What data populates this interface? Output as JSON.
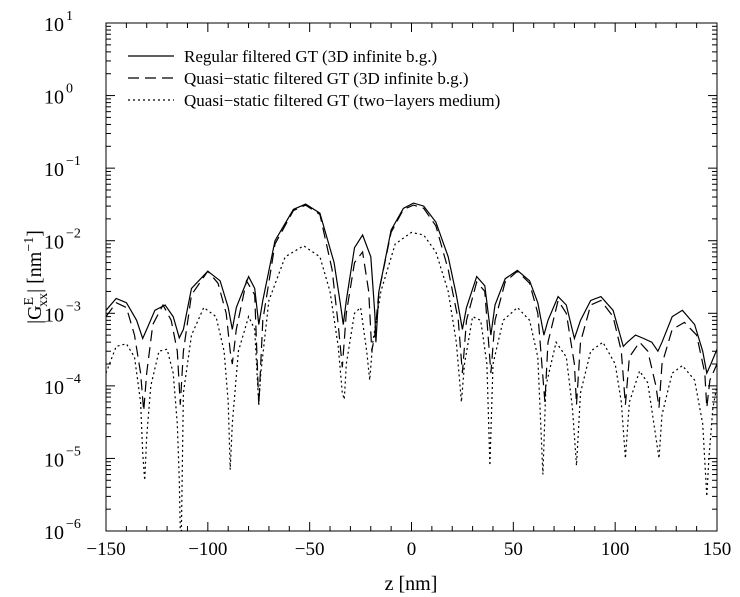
{
  "chart_data": {
    "type": "line",
    "title": "",
    "xlabel": "z [nm]",
    "ylabel": "|G",
    "ylabel_sup": "E",
    "ylabel_sub": "xx",
    "ylabel_tail": "| [nm",
    "ylabel_tail_sup": "−1",
    "ylabel_end": "]",
    "xlim": [
      -150,
      150
    ],
    "ylim": [
      1e-06,
      10
    ],
    "yscale": "log",
    "grid": false,
    "legend_position": "top-left",
    "xticks": [
      {
        "value": -150,
        "label": "−150"
      },
      {
        "value": -100,
        "label": "−100"
      },
      {
        "value": -50,
        "label": "−50"
      },
      {
        "value": 0,
        "label": "0"
      },
      {
        "value": 50,
        "label": "50"
      },
      {
        "value": 100,
        "label": "100"
      },
      {
        "value": 150,
        "label": "150"
      }
    ],
    "yticks": [
      {
        "value": 1e-06,
        "base": "10",
        "exp": "−6"
      },
      {
        "value": 1e-05,
        "base": "10",
        "exp": "−5"
      },
      {
        "value": 0.0001,
        "base": "10",
        "exp": "−4"
      },
      {
        "value": 0.001,
        "base": "10",
        "exp": "−3"
      },
      {
        "value": 0.01,
        "base": "10",
        "exp": "−2"
      },
      {
        "value": 0.1,
        "base": "10",
        "exp": "−1"
      },
      {
        "value": 1,
        "base": "10",
        "exp": "0"
      },
      {
        "value": 10,
        "base": "10",
        "exp": "1"
      }
    ],
    "series": [
      {
        "name": "Regular filtered GT (3D infinite b.g.)",
        "style": "solid",
        "points": [
          [
            -150,
            0.0011
          ],
          [
            -145,
            0.0016
          ],
          [
            -140,
            0.0014
          ],
          [
            -135,
            0.0008
          ],
          [
            -132,
            0.00045
          ],
          [
            -130,
            0.0006
          ],
          [
            -126,
            0.0011
          ],
          [
            -121,
            0.0013
          ],
          [
            -117,
            0.0009
          ],
          [
            -114,
            0.00046
          ],
          [
            -112,
            0.0006
          ],
          [
            -108,
            0.0022
          ],
          [
            -100,
            0.0038
          ],
          [
            -94,
            0.0028
          ],
          [
            -90,
            0.0012
          ],
          [
            -88,
            0.0006
          ],
          [
            -86,
            0.0012
          ],
          [
            -80,
            0.0032
          ],
          [
            -77,
            0.0022
          ],
          [
            -75,
            0.0007
          ],
          [
            -73,
            0.0015
          ],
          [
            -67,
            0.01
          ],
          [
            -58,
            0.027
          ],
          [
            -52,
            0.032
          ],
          [
            -45,
            0.024
          ],
          [
            -38,
            0.005
          ],
          [
            -35,
            0.0014
          ],
          [
            -33.5,
            0.0007
          ],
          [
            -32,
            0.0015
          ],
          [
            -28,
            0.008
          ],
          [
            -24,
            0.012
          ],
          [
            -20,
            0.006
          ],
          [
            -18,
            0.001
          ],
          [
            -17.5,
            0.0004
          ],
          [
            -16,
            0.002
          ],
          [
            -10,
            0.014
          ],
          [
            -4,
            0.028
          ],
          [
            1,
            0.033
          ],
          [
            6,
            0.03
          ],
          [
            12,
            0.018
          ],
          [
            18,
            0.006
          ],
          [
            22,
            0.0018
          ],
          [
            25,
            0.0006
          ],
          [
            27,
            0.0012
          ],
          [
            32,
            0.0032
          ],
          [
            36,
            0.0024
          ],
          [
            39,
            0.0005
          ],
          [
            41,
            0.0013
          ],
          [
            46,
            0.003
          ],
          [
            52,
            0.0039
          ],
          [
            58,
            0.0028
          ],
          [
            62,
            0.0014
          ],
          [
            65,
            0.0005
          ],
          [
            67,
            0.0008
          ],
          [
            72,
            0.0017
          ],
          [
            76,
            0.0013
          ],
          [
            80,
            0.00045
          ],
          [
            83,
            0.0008
          ],
          [
            88,
            0.0015
          ],
          [
            93,
            0.0017
          ],
          [
            99,
            0.0011
          ],
          [
            104,
            0.00035
          ],
          [
            106,
            0.0004
          ],
          [
            110,
            0.0005
          ],
          [
            114,
            0.00045
          ],
          [
            118,
            0.0004
          ],
          [
            121,
            0.0003
          ],
          [
            123,
            0.0004
          ],
          [
            128,
            0.0009
          ],
          [
            133,
            0.0011
          ],
          [
            139,
            0.0007
          ],
          [
            143,
            0.0003
          ],
          [
            145,
            0.00015
          ],
          [
            147,
            0.0002
          ],
          [
            150,
            0.00032
          ]
        ]
      },
      {
        "name": "Quasi−static filtered GT (3D infinite b.g.)",
        "style": "dashed",
        "points": [
          [
            -150,
            0.0009
          ],
          [
            -145,
            0.0014
          ],
          [
            -140,
            0.0012
          ],
          [
            -136,
            0.0005
          ],
          [
            -133,
            0.00015
          ],
          [
            -131.5,
            4.5e-05
          ],
          [
            -130,
            0.00015
          ],
          [
            -127,
            0.0007
          ],
          [
            -122,
            0.0013
          ],
          [
            -118,
            0.0008
          ],
          [
            -115,
            0.0003
          ],
          [
            -113.5,
            5.5e-05
          ],
          [
            -112,
            0.0003
          ],
          [
            -108,
            0.0018
          ],
          [
            -100,
            0.0038
          ],
          [
            -95,
            0.0026
          ],
          [
            -91,
            0.001
          ],
          [
            -89,
            0.0003
          ],
          [
            -88,
            0.0002
          ],
          [
            -86,
            0.0006
          ],
          [
            -81,
            0.0028
          ],
          [
            -77,
            0.0018
          ],
          [
            -75,
            5.5e-05
          ],
          [
            -73,
            0.0008
          ],
          [
            -67,
            0.009
          ],
          [
            -58,
            0.026
          ],
          [
            -52,
            0.031
          ],
          [
            -45,
            0.023
          ],
          [
            -39,
            0.004
          ],
          [
            -36,
            0.0007
          ],
          [
            -34,
            0.00018
          ],
          [
            -32,
            0.001
          ],
          [
            -28,
            0.005
          ],
          [
            -24,
            0.007
          ],
          [
            -21,
            0.002
          ],
          [
            -19.5,
            0.0003
          ],
          [
            -18,
            0.0005
          ],
          [
            -16,
            0.002
          ],
          [
            -10,
            0.013
          ],
          [
            -4,
            0.027
          ],
          [
            1,
            0.031
          ],
          [
            6,
            0.028
          ],
          [
            12,
            0.016
          ],
          [
            18,
            0.004
          ],
          [
            23,
            0.0008
          ],
          [
            25,
            0.00015
          ],
          [
            27,
            0.0008
          ],
          [
            32,
            0.0027
          ],
          [
            36,
            0.002
          ],
          [
            39,
            0.00015
          ],
          [
            41,
            0.0008
          ],
          [
            46,
            0.0027
          ],
          [
            52,
            0.0038
          ],
          [
            58,
            0.0026
          ],
          [
            62,
            0.001
          ],
          [
            65.5,
            6e-05
          ],
          [
            67,
            0.0004
          ],
          [
            72,
            0.0015
          ],
          [
            76,
            0.001
          ],
          [
            80,
            0.0002
          ],
          [
            81,
            5.5e-05
          ],
          [
            83,
            0.0004
          ],
          [
            88,
            0.0013
          ],
          [
            93,
            0.0015
          ],
          [
            99,
            0.0009
          ],
          [
            103,
            0.0003
          ],
          [
            105,
            5.5e-05
          ],
          [
            107,
            0.00025
          ],
          [
            112,
            0.0004
          ],
          [
            116,
            0.0003
          ],
          [
            120,
            0.0001
          ],
          [
            121.5,
            5e-05
          ],
          [
            123,
            0.0002
          ],
          [
            128,
            0.0006
          ],
          [
            134,
            0.00075
          ],
          [
            140,
            0.0005
          ],
          [
            144,
            0.00015
          ],
          [
            145,
            5e-05
          ],
          [
            146.5,
            0.00012
          ],
          [
            150,
            0.0002
          ]
        ]
      },
      {
        "name": "Quasi−static filtered GT (two−layers medium)",
        "style": "dotted",
        "points": [
          [
            -150,
            0.00015
          ],
          [
            -145,
            0.00035
          ],
          [
            -140,
            0.00038
          ],
          [
            -136,
            0.00025
          ],
          [
            -133,
            6e-05
          ],
          [
            -132,
            1.2e-05
          ],
          [
            -131,
            5e-06
          ],
          [
            -130,
            2e-05
          ],
          [
            -128,
            0.0001
          ],
          [
            -124,
            0.0003
          ],
          [
            -120,
            0.00032
          ],
          [
            -117,
            0.00015
          ],
          [
            -115,
            3e-05
          ],
          [
            -114,
            5e-06
          ],
          [
            -113.5,
            1e-06
          ],
          [
            -113,
            1e-06
          ],
          [
            -112,
            8e-05
          ],
          [
            -108,
            0.0005
          ],
          [
            -102,
            0.0012
          ],
          [
            -96,
            0.0009
          ],
          [
            -92,
            0.0003
          ],
          [
            -90,
            6e-05
          ],
          [
            -89,
            7e-06
          ],
          [
            -88,
            3e-05
          ],
          [
            -85,
            0.0003
          ],
          [
            -80,
            0.0009
          ],
          [
            -77,
            0.0006
          ],
          [
            -75.5,
            0.0001
          ],
          [
            -75,
            5.5e-05
          ],
          [
            -74,
            0.00015
          ],
          [
            -70,
            0.0015
          ],
          [
            -62,
            0.006
          ],
          [
            -53,
            0.0085
          ],
          [
            -45,
            0.006
          ],
          [
            -40,
            0.002
          ],
          [
            -36,
            0.00035
          ],
          [
            -34,
            8e-05
          ],
          [
            -33,
            6.5e-05
          ],
          [
            -32,
            0.0002
          ],
          [
            -28,
            0.001
          ],
          [
            -25,
            0.0012
          ],
          [
            -22,
            0.0003
          ],
          [
            -20.5,
            0.00012
          ],
          [
            -19,
            0.0004
          ],
          [
            -15,
            0.002
          ],
          [
            -8,
            0.009
          ],
          [
            0,
            0.013
          ],
          [
            6,
            0.012
          ],
          [
            12,
            0.007
          ],
          [
            18,
            0.002
          ],
          [
            22,
            0.0004
          ],
          [
            24.5,
            6e-05
          ],
          [
            26,
            0.0002
          ],
          [
            30,
            0.0009
          ],
          [
            34,
            0.0008
          ],
          [
            37,
            0.0002
          ],
          [
            38.5,
            8e-06
          ],
          [
            40,
            0.0002
          ],
          [
            45,
            0.0008
          ],
          [
            52,
            0.0012
          ],
          [
            58,
            0.0008
          ],
          [
            62,
            0.00025
          ],
          [
            64.5,
            6e-06
          ],
          [
            66,
            0.0001
          ],
          [
            71,
            0.0004
          ],
          [
            76,
            0.00025
          ],
          [
            79,
            5e-05
          ],
          [
            81,
            8e-06
          ],
          [
            83,
            8e-05
          ],
          [
            88,
            0.0003
          ],
          [
            94,
            0.0004
          ],
          [
            100,
            0.0002
          ],
          [
            103,
            6e-05
          ],
          [
            105,
            1e-05
          ],
          [
            107,
            6e-05
          ],
          [
            112,
            0.00016
          ],
          [
            116,
            0.00011
          ],
          [
            119,
            3e-05
          ],
          [
            121.5,
            1e-05
          ],
          [
            123,
            4e-05
          ],
          [
            128,
            0.00015
          ],
          [
            133,
            0.00019
          ],
          [
            139,
            0.00012
          ],
          [
            143,
            3e-05
          ],
          [
            145,
            3e-06
          ],
          [
            146,
            1e-05
          ],
          [
            148,
            5e-05
          ],
          [
            150,
            0.0001
          ]
        ]
      }
    ]
  }
}
